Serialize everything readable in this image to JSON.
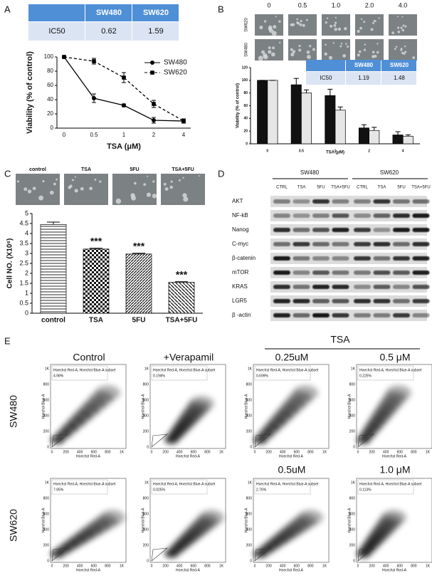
{
  "panel_labels": [
    "A",
    "B",
    "C",
    "D",
    "E"
  ],
  "table_a": {
    "header": [
      "SW480",
      "SW620"
    ],
    "row": [
      "IC50",
      "0.62",
      "1.59"
    ]
  },
  "table_b": {
    "header": [
      "SW480",
      "SW620"
    ],
    "row": [
      "IC50",
      "1.19",
      "1.48"
    ]
  },
  "images_b": {
    "columns": [
      "0",
      "0.5",
      "1.0",
      "2.0",
      "4.0"
    ],
    "rows": [
      "SW620",
      "SW480"
    ]
  },
  "images_c": {
    "columns": [
      "control",
      "TSA",
      "5FU",
      "TSA+5FU"
    ]
  },
  "chart_data": [
    {
      "type": "line",
      "x_label": "TSA (μM)",
      "y_label": "Viability (% of control)",
      "categories": [
        "0",
        "0.5",
        "1",
        "2",
        "4"
      ],
      "ylim": [
        0,
        100
      ],
      "yticks": [
        0,
        20,
        40,
        60,
        80,
        100
      ],
      "legend": "upper right",
      "series": [
        {
          "name": "SW480",
          "color": "#000000",
          "dash": "solid",
          "marker": "circle",
          "values": [
            100,
            42,
            32,
            11,
            10
          ],
          "errors": [
            0,
            6,
            2,
            4,
            3
          ]
        },
        {
          "name": "SW620",
          "color": "#000000",
          "dash": "dashed",
          "marker": "square",
          "values": [
            100,
            94,
            71,
            34,
            10
          ],
          "errors": [
            0,
            4,
            7,
            5,
            3
          ]
        }
      ]
    },
    {
      "type": "bar",
      "x_label": "TSA (μM)",
      "y_label": "Viability (% of control)",
      "categories": [
        "0",
        "0.5",
        "1",
        "2",
        "4"
      ],
      "ylim": [
        0,
        120
      ],
      "yticks": [
        0,
        20,
        40,
        60,
        80,
        100,
        120
      ],
      "series": [
        {
          "color": "#111111",
          "values": [
            100,
            93,
            76,
            25,
            14
          ],
          "errors": [
            0,
            10,
            10,
            5,
            5
          ]
        },
        {
          "color": "#e6e6e6",
          "values": [
            100,
            80,
            53,
            21,
            12
          ],
          "errors": [
            0,
            5,
            5,
            5,
            2
          ]
        }
      ]
    },
    {
      "type": "bar",
      "y_label": "Cell NO. (X10⁶)",
      "categories": [
        "control",
        "TSA",
        "5FU",
        "TSA+5FU"
      ],
      "ylim": [
        0,
        5
      ],
      "yticks": [
        0,
        0.5,
        1,
        1.5,
        2,
        2.5,
        3,
        3.5,
        4,
        4.5,
        5
      ],
      "series": [
        {
          "values": [
            4.45,
            3.22,
            2.97,
            1.55
          ],
          "errors": [
            0.12,
            0.04,
            0.04,
            0.03
          ]
        }
      ],
      "annotations": [
        null,
        "***",
        "***",
        "***"
      ]
    }
  ],
  "blot": {
    "groups": [
      "SW480",
      "SW620"
    ],
    "lanes": [
      "CTRL",
      "TSA",
      "5FU",
      "TSA+5FU",
      "CTRL",
      "TSA",
      "5FU",
      "TSA+5FU"
    ],
    "proteins": [
      "AKT",
      "NF-kB",
      "Nanog",
      "C-myc",
      "β-catenin",
      "mTOR",
      "KRAS",
      "LGR5",
      "β -actin"
    ]
  },
  "flow": {
    "tsa_header": "TSA",
    "columns": [
      "Control",
      "+Verapamil",
      "0.25uM",
      "0.5 μM"
    ],
    "row2_columns": [
      "0.5uM",
      "1.0 μM"
    ],
    "rows": [
      "SW480",
      "SW620"
    ],
    "x_label": "Hoechst Red-A",
    "y_label": "Hoechst Blue-A",
    "gate_label": "Hoechst Red-A, Hoechst Blue-A subset",
    "ticks": [
      "0",
      "200",
      "400",
      "600",
      "800",
      "1K"
    ],
    "percents": [
      "4.98%",
      "0.194%",
      "0.699%",
      "0.225%",
      "7.95%",
      "0.025%",
      "2.76%",
      "0.113%"
    ]
  }
}
